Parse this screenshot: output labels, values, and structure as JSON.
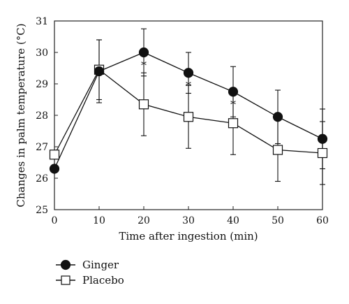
{
  "chart_data": {
    "type": "line",
    "xlabel": "Time after ingestion (min)",
    "ylabel": "Changes in palm temperature (°C)",
    "x": [
      0,
      10,
      20,
      30,
      40,
      50,
      60
    ],
    "xticks": [
      "0",
      "10",
      "20",
      "30",
      "40",
      "50",
      "60"
    ],
    "yticks": [
      "25",
      "26",
      "27",
      "28",
      "29",
      "30",
      "31"
    ],
    "xlim": [
      0,
      60
    ],
    "ylim": [
      25,
      31
    ],
    "grid": false,
    "legend_position": "bottom-left",
    "series": [
      {
        "name": "Ginger",
        "marker": "filled-circle",
        "values": [
          26.3,
          29.4,
          30.0,
          29.35,
          28.75,
          27.95,
          27.25
        ],
        "errors": [
          null,
          1.0,
          0.75,
          0.65,
          0.8,
          0.85,
          0.95
        ]
      },
      {
        "name": "Placebo",
        "marker": "open-square",
        "values": [
          26.75,
          29.45,
          28.35,
          27.95,
          27.75,
          26.9,
          26.8
        ],
        "errors": [
          null,
          0.95,
          1.0,
          1.0,
          1.0,
          1.0,
          1.0
        ]
      }
    ],
    "annotations": [
      {
        "text": "*",
        "x": 20,
        "y": 29.65
      },
      {
        "text": "*",
        "x": 30,
        "y": 29.0
      },
      {
        "text": "*",
        "x": 40,
        "y": 28.4
      }
    ]
  }
}
